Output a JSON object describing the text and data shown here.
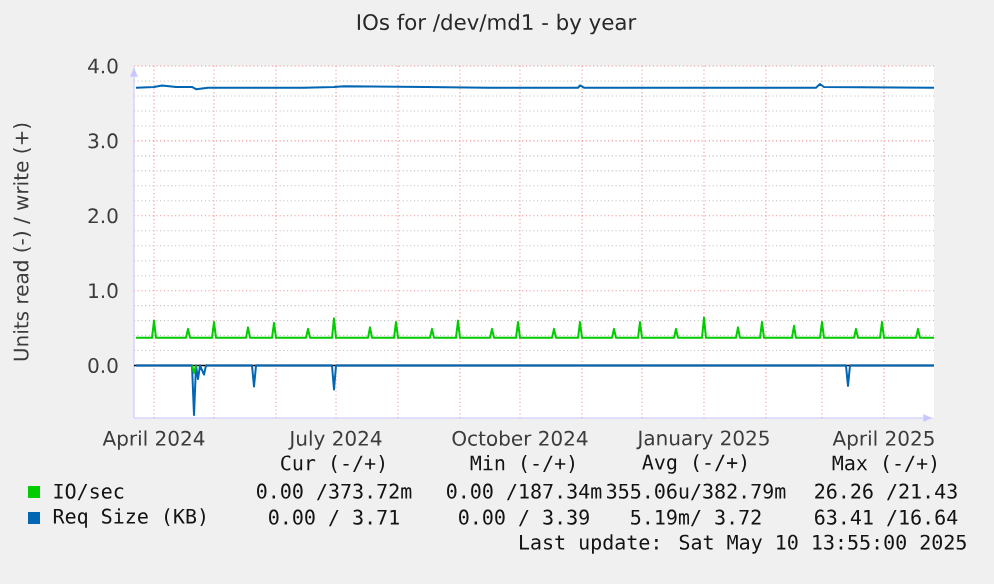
{
  "chart_data": {
    "type": "line",
    "title": "IOs for /dev/md1 - by year",
    "ylabel": "Units read (-) / write (+)",
    "xlim": [
      "2024-03-22",
      "2025-04-26"
    ],
    "xticks": [
      {
        "value": "2024-04-01",
        "label": "April 2024"
      },
      {
        "value": "2024-05-01",
        "label": null
      },
      {
        "value": "2024-06-01",
        "label": null
      },
      {
        "value": "2024-07-01",
        "label": "July 2024"
      },
      {
        "value": "2024-08-01",
        "label": null
      },
      {
        "value": "2024-09-01",
        "label": null
      },
      {
        "value": "2024-10-01",
        "label": "October 2024"
      },
      {
        "value": "2024-11-01",
        "label": null
      },
      {
        "value": "2024-12-01",
        "label": null
      },
      {
        "value": "2025-01-01",
        "label": "January 2025"
      },
      {
        "value": "2025-02-01",
        "label": null
      },
      {
        "value": "2025-03-01",
        "label": null
      },
      {
        "value": "2025-04-01",
        "label": "April 2025"
      }
    ],
    "ylim": [
      -0.7,
      4.0
    ],
    "yticks": [
      {
        "value": 0,
        "label": "0.0"
      },
      {
        "value": 1,
        "label": "1.0"
      },
      {
        "value": 2,
        "label": "2.0"
      },
      {
        "value": 3,
        "label": "3.0"
      },
      {
        "value": 4,
        "label": "4.0"
      }
    ],
    "grid": true,
    "legend": "bottom left",
    "ref_lines": [
      {
        "axis": "y",
        "value": 0,
        "color": "#000000"
      }
    ],
    "series": [
      {
        "name": "IO/sec",
        "color": "#00cc00",
        "x": [
          "2024-03-23",
          "2024-03-31",
          "2024-04-01",
          "2024-04-02",
          "2024-04-17",
          "2024-04-18",
          "2024-04-19",
          "2024-04-30",
          "2024-05-01",
          "2024-05-02",
          "2024-05-17",
          "2024-05-18",
          "2024-05-19",
          "2024-05-30",
          "2024-05-31",
          "2024-06-01",
          "2024-06-16",
          "2024-06-17",
          "2024-06-18",
          "2024-06-29",
          "2024-06-30",
          "2024-07-01",
          "2024-07-17",
          "2024-07-18",
          "2024-07-19",
          "2024-07-30",
          "2024-07-31",
          "2024-08-01",
          "2024-08-17",
          "2024-08-18",
          "2024-08-19",
          "2024-08-30",
          "2024-08-31",
          "2024-09-01",
          "2024-09-16",
          "2024-09-17",
          "2024-09-18",
          "2024-09-29",
          "2024-09-30",
          "2024-10-01",
          "2024-10-17",
          "2024-10-18",
          "2024-10-19",
          "2024-10-30",
          "2024-10-31",
          "2024-11-01",
          "2024-11-16",
          "2024-11-17",
          "2024-11-18",
          "2024-11-29",
          "2024-11-30",
          "2024-12-01",
          "2024-12-17",
          "2024-12-18",
          "2024-12-19",
          "2024-12-31",
          "2025-01-01",
          "2025-01-02",
          "2025-01-17",
          "2025-01-18",
          "2025-01-19",
          "2025-01-29",
          "2025-01-30",
          "2025-01-31",
          "2025-02-14",
          "2025-02-15",
          "2025-02-16",
          "2025-02-28",
          "2025-03-01",
          "2025-03-02",
          "2025-03-17",
          "2025-03-18",
          "2025-03-19",
          "2025-03-30",
          "2025-03-31",
          "2025-04-01",
          "2025-04-17",
          "2025-04-18",
          "2025-04-19",
          "2025-04-26"
        ],
        "values": [
          0.37,
          0.37,
          0.6,
          0.37,
          0.37,
          0.49,
          0.37,
          0.37,
          0.58,
          0.37,
          0.37,
          0.51,
          0.37,
          0.37,
          0.57,
          0.37,
          0.37,
          0.49,
          0.37,
          0.37,
          0.63,
          0.37,
          0.37,
          0.51,
          0.37,
          0.37,
          0.58,
          0.37,
          0.37,
          0.49,
          0.37,
          0.37,
          0.6,
          0.37,
          0.37,
          0.49,
          0.37,
          0.37,
          0.58,
          0.37,
          0.37,
          0.49,
          0.37,
          0.37,
          0.58,
          0.37,
          0.37,
          0.49,
          0.37,
          0.37,
          0.58,
          0.37,
          0.37,
          0.49,
          0.37,
          0.37,
          0.64,
          0.37,
          0.37,
          0.51,
          0.37,
          0.37,
          0.58,
          0.37,
          0.37,
          0.53,
          0.37,
          0.37,
          0.58,
          0.37,
          0.37,
          0.49,
          0.37,
          0.37,
          0.58,
          0.37,
          0.37,
          0.49,
          0.37,
          0.37
        ]
      },
      {
        "name": "Req Size (KB)",
        "color": "#0066b3",
        "x": [
          "2024-03-23",
          "2024-04-01",
          "2024-04-05",
          "2024-04-12",
          "2024-04-20",
          "2024-04-22",
          "2024-04-28",
          "2024-06-15",
          "2024-06-30",
          "2024-07-05",
          "2024-08-15",
          "2024-09-15",
          "2024-10-30",
          "2024-10-31",
          "2024-11-02",
          "2024-12-31",
          "2025-02-26",
          "2025-02-28",
          "2025-03-02",
          "2025-04-26"
        ],
        "values": [
          3.71,
          3.72,
          3.74,
          3.72,
          3.72,
          3.69,
          3.71,
          3.71,
          3.72,
          3.73,
          3.72,
          3.71,
          3.71,
          3.74,
          3.71,
          3.71,
          3.71,
          3.76,
          3.72,
          3.71
        ]
      },
      {
        "color": "#0066b3",
        "x": [
          "2024-03-23",
          "2024-04-20",
          "2024-04-21",
          "2024-04-22",
          "2024-04-23",
          "2024-04-24",
          "2024-04-26",
          "2024-04-27",
          "2024-05-20",
          "2024-05-21",
          "2024-05-22",
          "2024-06-29",
          "2024-06-30",
          "2024-07-01",
          "2025-03-13",
          "2025-03-14",
          "2025-03-15",
          "2025-04-26"
        ],
        "values": [
          0,
          0,
          -0.66,
          0,
          -0.18,
          0,
          -0.12,
          0,
          0,
          -0.28,
          0,
          0,
          -0.32,
          0,
          0,
          -0.27,
          0,
          0
        ]
      },
      {
        "color": "#00cc00",
        "x": [
          "2024-04-20",
          "2024-04-21",
          "2024-04-22"
        ],
        "values": [
          0,
          -0.1,
          0
        ]
      }
    ],
    "annotations": [
      "Cur (-/+)",
      "Min (-/+)",
      "Avg (-/+)",
      "Max (-/+)",
      "0.00 /373.72m",
      "0.00 /187.34m",
      "355.06u/382.79m",
      "26.26 /21.43",
      "0.00 / 3.71",
      "0.00 / 3.39",
      "5.19m/ 3.72",
      "63.41 /16.64",
      "Last update: Sat May 10 13:55:00 2025"
    ]
  }
}
